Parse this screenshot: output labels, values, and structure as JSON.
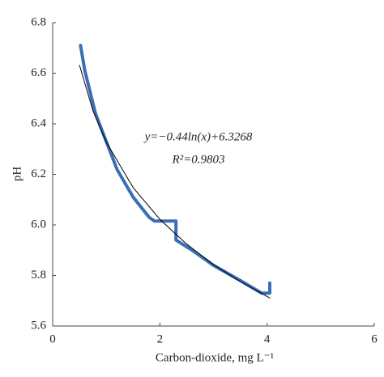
{
  "chart_data": {
    "type": "line",
    "xlabel": "Carbon-dioxide, mg L⁻¹",
    "ylabel": "pH",
    "annotations": [
      "y=−0.44ln(x)+6.3268",
      "R²=0.9803"
    ],
    "xlim": [
      0,
      6
    ],
    "xticks": [
      0,
      2,
      4,
      6
    ],
    "ylim": [
      5.6,
      6.8
    ],
    "yticks": [
      {
        "value": 5.6,
        "label": "5.6"
      },
      {
        "value": 5.8,
        "label": "5.8"
      },
      {
        "value": 6,
        "label": "6.0"
      },
      {
        "value": 6.2,
        "label": "6.2"
      },
      {
        "value": 6.4,
        "label": "6.4"
      },
      {
        "value": 6.6,
        "label": "6.6"
      },
      {
        "value": 6.8,
        "label": "6.8"
      }
    ],
    "grid": false,
    "series": [
      {
        "color": "#3a6fb5",
        "width": 4,
        "x": [
          0.52,
          0.6,
          0.8,
          1.0,
          1.2,
          1.5,
          1.8,
          1.9,
          2.0,
          2.3,
          2.3,
          2.6,
          3.0,
          3.5,
          3.9,
          4.05,
          4.05
        ],
        "values": [
          6.71,
          6.61,
          6.44,
          6.33,
          6.22,
          6.11,
          6.03,
          6.015,
          6.015,
          6.015,
          5.94,
          5.9,
          5.84,
          5.78,
          5.73,
          5.73,
          5.77
        ]
      },
      {
        "color": "#000000",
        "width": 1,
        "x": [
          0.5,
          0.75,
          1.0,
          1.5,
          2.0,
          2.5,
          3.0,
          3.5,
          4.05
        ],
        "values": [
          6.632,
          6.453,
          6.327,
          6.148,
          6.022,
          5.924,
          5.843,
          5.776,
          5.711
        ]
      }
    ]
  }
}
